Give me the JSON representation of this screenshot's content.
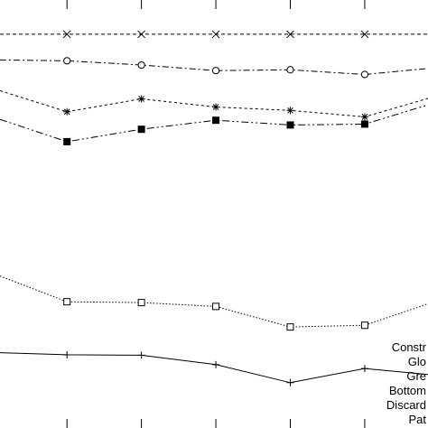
{
  "chart_data": {
    "type": "line",
    "title": "",
    "xlabel": "",
    "ylabel": "",
    "x": [
      1,
      2,
      3,
      4,
      5
    ],
    "xlim": [
      0.1,
      5.85
    ],
    "ylim": [
      0,
      100
    ],
    "grid": false,
    "legend_placement": "bottom-right",
    "series": [
      {
        "name": "",
        "marker": "x",
        "dash": "4,3",
        "color": "#000000",
        "values": [
          [
            0.1,
            92.0
          ],
          [
            1,
            92.0
          ],
          [
            2,
            92.0
          ],
          [
            3,
            92.0
          ],
          [
            4,
            92.0
          ],
          [
            5,
            92.0
          ],
          [
            5.85,
            92.0
          ]
        ]
      },
      {
        "name": "",
        "marker": "circle-open",
        "dash": "7,3,2,3",
        "color": "#000000",
        "values": [
          [
            0.1,
            86.0
          ],
          [
            1,
            85.8
          ],
          [
            2,
            84.8
          ],
          [
            3,
            83.5
          ],
          [
            4,
            83.7
          ],
          [
            5,
            82.6
          ],
          [
            5.85,
            84.0
          ]
        ]
      },
      {
        "name": "",
        "marker": "asterisk",
        "dash": "3,3",
        "color": "#000000",
        "values": [
          [
            0.1,
            78.8
          ],
          [
            1,
            73.9
          ],
          [
            2,
            76.9
          ],
          [
            3,
            75.0
          ],
          [
            4,
            74.2
          ],
          [
            5,
            72.7
          ],
          [
            5.85,
            77.0
          ]
        ]
      },
      {
        "name": "",
        "marker": "square-filled",
        "dash": "8,3,2,3,2,3",
        "color": "#000000",
        "values": [
          [
            0.1,
            72.1
          ],
          [
            1,
            66.9
          ],
          [
            2,
            69.8
          ],
          [
            3,
            71.9
          ],
          [
            4,
            70.8
          ],
          [
            5,
            71.0
          ],
          [
            5.85,
            75.5
          ]
        ]
      },
      {
        "name": "",
        "marker": "square-open",
        "dash": "1.5,2",
        "color": "#000000",
        "values": [
          [
            0.1,
            35.5
          ],
          [
            1,
            29.5
          ],
          [
            2,
            29.3
          ],
          [
            3,
            28.4
          ],
          [
            4,
            23.6
          ],
          [
            5,
            24.0
          ],
          [
            5.85,
            29.0
          ]
        ]
      },
      {
        "name": "",
        "marker": "plus",
        "dash": "",
        "color": "#000000",
        "values": [
          [
            0.1,
            17.6
          ],
          [
            1,
            17.1
          ],
          [
            2,
            17.0
          ],
          [
            3,
            14.8
          ],
          [
            4,
            10.6
          ],
          [
            5,
            13.9
          ],
          [
            5.85,
            12.5
          ]
        ]
      }
    ],
    "legend": [
      "Constr",
      "Glo",
      "Gre",
      "Bottom",
      "Discard",
      "Pat"
    ]
  }
}
